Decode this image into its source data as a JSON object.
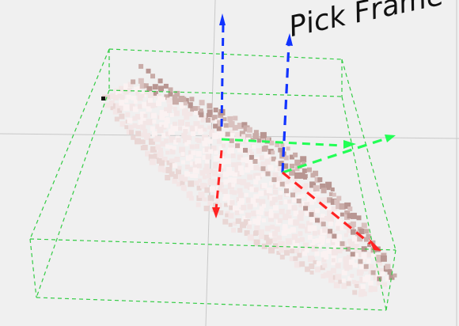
{
  "viewport": {
    "title": "Pick Frame",
    "background": "#f0f0f0",
    "grid_color": "#c8c8c8",
    "bounding_box_color": "#33cc44",
    "point_cloud": {
      "name": "point-cloud",
      "colors": [
        "#f3e6e6",
        "#e9d6d4",
        "#d9c1bf",
        "#c9aca8",
        "#b89692",
        "#fbf2f2"
      ]
    },
    "axes": {
      "x": {
        "name": "x-axis",
        "color": "#ff2222"
      },
      "y": {
        "name": "y-axis",
        "color": "#22ff55"
      },
      "z": {
        "name": "z-axis",
        "color": "#1133ff"
      }
    }
  }
}
